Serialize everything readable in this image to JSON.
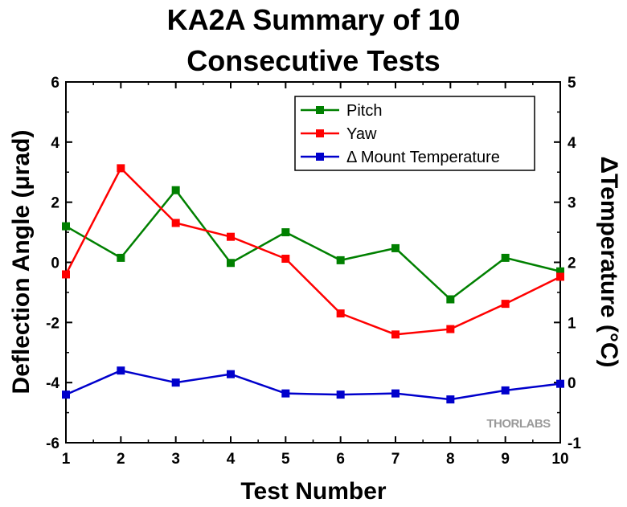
{
  "chart_data": {
    "type": "line",
    "title": [
      "KA2A Summary of 10",
      "Consecutive Tests"
    ],
    "xlabel": "Test Number",
    "ylabel_left": "Deflection Angle (μrad)",
    "ylabel_right": "ΔTemperature (°C)",
    "x": [
      1,
      2,
      3,
      4,
      5,
      6,
      7,
      8,
      9,
      10
    ],
    "xlim": [
      1,
      10
    ],
    "ylim_left": [
      -6,
      6
    ],
    "ylim_right": [
      -1,
      5
    ],
    "xticks": [
      1,
      2,
      3,
      4,
      5,
      6,
      7,
      8,
      9,
      10
    ],
    "yticks_left": [
      -6,
      -4,
      -2,
      0,
      2,
      4,
      6
    ],
    "yticks_right": [
      -1,
      0,
      1,
      2,
      3,
      4,
      5
    ],
    "legend_position": "top-right",
    "grid": false,
    "series": [
      {
        "name": "Pitch",
        "axis": "left",
        "color": "#008000",
        "values": [
          1.2,
          0.15,
          2.4,
          -0.02,
          1.0,
          0.07,
          0.47,
          -1.23,
          0.15,
          -0.3
        ]
      },
      {
        "name": "Yaw",
        "axis": "left",
        "color": "#ff0000",
        "values": [
          -0.4,
          3.13,
          1.31,
          0.85,
          0.12,
          -1.7,
          -2.4,
          -2.22,
          -1.38,
          -0.48
        ]
      },
      {
        "name": "Δ Mount Temperature",
        "axis": "right",
        "color": "#0000cc",
        "values": [
          -0.2,
          0.2,
          0.0,
          0.14,
          -0.18,
          -0.2,
          -0.18,
          -0.28,
          -0.13,
          -0.02
        ]
      }
    ]
  },
  "watermark": "THORLABS"
}
